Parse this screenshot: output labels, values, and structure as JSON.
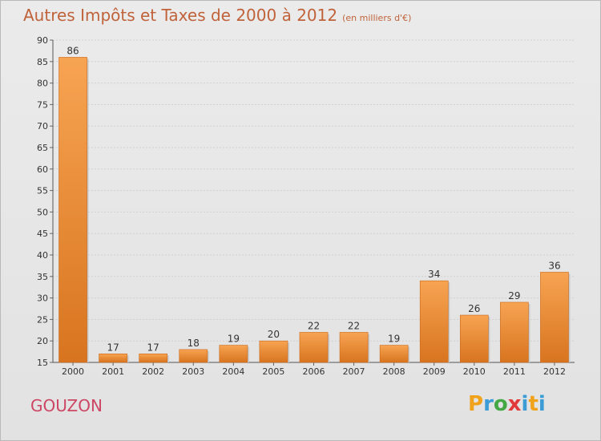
{
  "header": {
    "title": "Autres Impôts et Taxes de 2000 à 2012",
    "unit": "(en milliers d'€)"
  },
  "footer": {
    "commune": "GOUZON",
    "logo_letters": [
      "P",
      "r",
      "o",
      "x",
      "i",
      "t",
      "i"
    ],
    "logo_colors": [
      "#f0a21a",
      "#3b9cd6",
      "#45a845",
      "#e23a3a",
      "#3b9cd6",
      "#f0a21a",
      "#3b9cd6"
    ]
  },
  "colors": {
    "bar_light": "#f7a452",
    "bar_dark": "#d8741f",
    "title": "#c0623a",
    "commune": "#cd4664"
  },
  "chart_data": {
    "type": "bar",
    "title": "Autres Impôts et Taxes de 2000 à 2012",
    "xlabel": "",
    "ylabel": "",
    "categories": [
      "2000",
      "2001",
      "2002",
      "2003",
      "2004",
      "2005",
      "2006",
      "2007",
      "2008",
      "2009",
      "2010",
      "2011",
      "2012"
    ],
    "values": [
      86,
      17,
      17,
      18,
      19,
      20,
      22,
      22,
      19,
      34,
      26,
      29,
      36
    ],
    "data_labels": [
      "86",
      "17",
      "17",
      "18",
      "19",
      "20",
      "22",
      "22",
      "19",
      "34",
      "26",
      "29",
      "36"
    ],
    "ylim": [
      15,
      90
    ],
    "yticks": [
      15,
      20,
      25,
      30,
      35,
      40,
      45,
      50,
      55,
      60,
      65,
      70,
      75,
      80,
      85,
      90
    ],
    "ytick_labels": [
      "15",
      "20",
      "25",
      "30",
      "35",
      "40",
      "45",
      "50",
      "55",
      "60",
      "65",
      "70",
      "75",
      "80",
      "85",
      "90"
    ],
    "grid": true,
    "legend": "none"
  }
}
